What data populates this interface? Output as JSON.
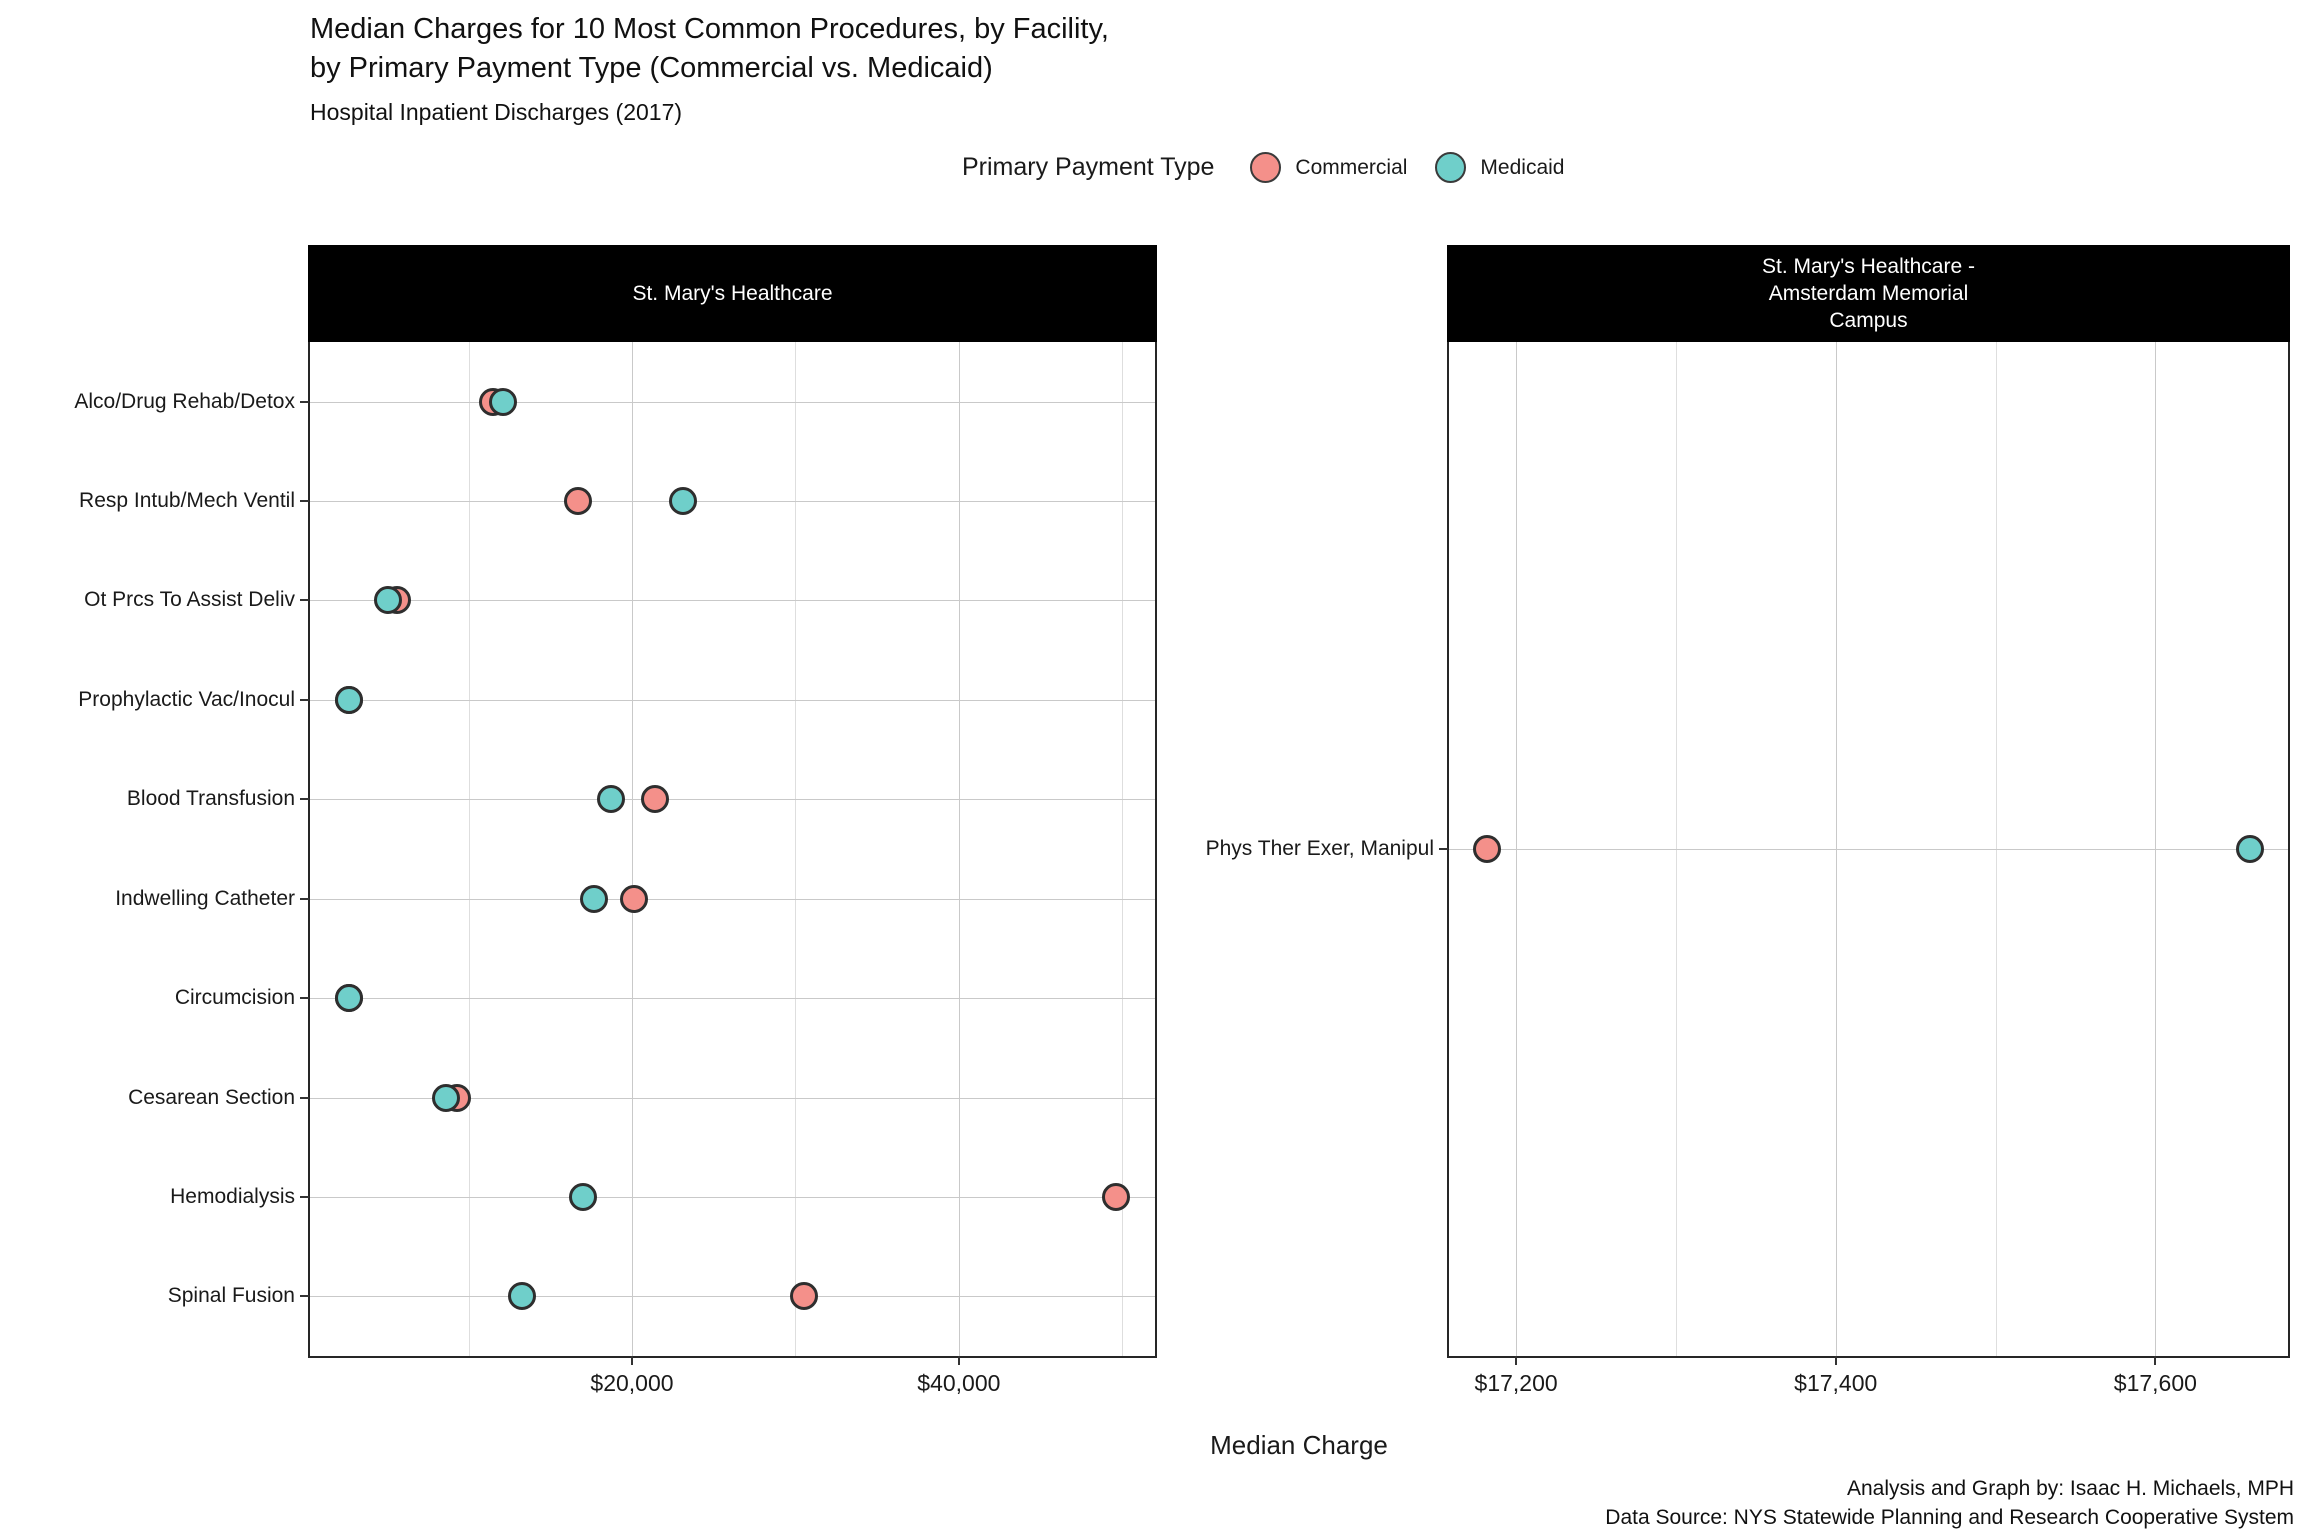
{
  "title": {
    "line1": "Median Charges for 10 Most Common Procedures, by Facility,",
    "line2": "by Primary Payment Type (Commercial vs. Medicaid)",
    "subtitle": "Hospital Inpatient Discharges (2017)"
  },
  "legend": {
    "title": "Primary Payment Type",
    "items": [
      {
        "label": "Commercial",
        "color": "#F4908A"
      },
      {
        "label": "Medicaid",
        "color": "#6FCFCA"
      }
    ]
  },
  "axis": {
    "x_title": "Median Charge"
  },
  "caption": {
    "line1": "Analysis and Graph by: Isaac H. Michaels, MPH",
    "line2": "Data Source: NYS Statewide Planning and Research Cooperative System"
  },
  "style_colors": {
    "dot_outline": "#2e2e2e",
    "strip_background": "#000000",
    "strip_text": "#ffffff",
    "gridline_major": "#c9c9c9",
    "gridline_minor": "#dedede"
  },
  "chart_data": [
    {
      "type": "scatter",
      "facet": "St. Mary's Healthcare",
      "facet_lines": [
        "St. Mary's Healthcare"
      ],
      "orientation": "horizontal-dotplot",
      "categories": [
        "Alco/Drug Rehab/Detox",
        "Resp Intub/Mech Ventil",
        "Ot Prcs To Assist Deliv",
        "Prophylactic Vac/Inocul",
        "Blood Transfusion",
        "Indwelling Catheter",
        "Circumcision",
        "Cesarean Section",
        "Hemodialysis",
        "Spinal Fusion"
      ],
      "series": [
        {
          "name": "Commercial",
          "values": [
            11500,
            16700,
            5600,
            2700,
            21400,
            20100,
            2700,
            9300,
            49600,
            30500
          ]
        },
        {
          "name": "Medicaid",
          "values": [
            12100,
            23100,
            5100,
            2700,
            18700,
            17700,
            2700,
            8600,
            17000,
            13300
          ]
        }
      ],
      "xlim": [
        300,
        52000
      ],
      "x_major_ticks": [
        20000,
        40000
      ],
      "x_tick_labels": [
        "$20,000",
        "$40,000"
      ],
      "x_minor_ticks": [
        10000,
        30000,
        50000
      ],
      "grid": true,
      "legend_position": "top"
    },
    {
      "type": "scatter",
      "facet": "St. Mary's Healthcare - Amsterdam Memorial Campus",
      "facet_lines": [
        "St. Mary's Healthcare -",
        "Amsterdam Memorial",
        "Campus"
      ],
      "orientation": "horizontal-dotplot",
      "categories": [
        "Phys Ther Exer, Manipul"
      ],
      "series": [
        {
          "name": "Commercial",
          "values": [
            17182
          ]
        },
        {
          "name": "Medicaid",
          "values": [
            17659
          ]
        }
      ],
      "xlim": [
        17158,
        17683
      ],
      "x_major_ticks": [
        17200,
        17400,
        17600
      ],
      "x_tick_labels": [
        "$17,200",
        "$17,400",
        "$17,600"
      ],
      "x_minor_ticks": [
        17300,
        17500
      ],
      "grid": true,
      "legend_position": "top"
    }
  ]
}
